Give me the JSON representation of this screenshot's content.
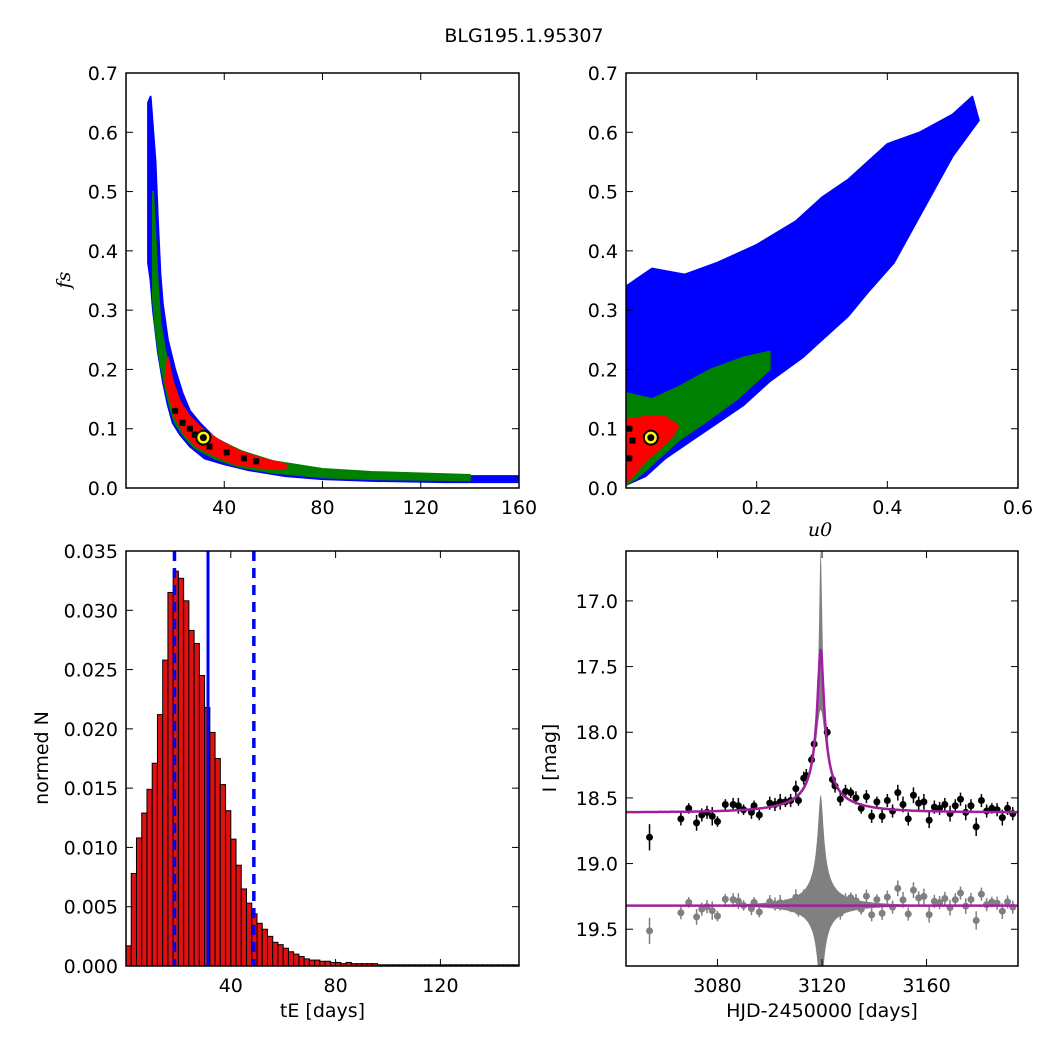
{
  "figure": {
    "title": "BLG195.1.95307"
  },
  "colors": {
    "sigma3": "#0000ff",
    "sigma2": "#008000",
    "sigma1": "#ff0000",
    "peak": "#000000",
    "best_fit_ring": "#ffff00",
    "hist_bar": "#dd1111",
    "model_line": "#a020a0",
    "residual_band": "#808080"
  },
  "chart_data": [
    {
      "id": "fs_vs_tE",
      "type": "heatmap",
      "xlabel": "",
      "ylabel": "f_s",
      "ylabel_display": "fs",
      "xlim": [
        0,
        160
      ],
      "ylim": [
        0.0,
        0.7
      ],
      "xticks": [
        40,
        80,
        120,
        160
      ],
      "yticks": [
        0.0,
        0.1,
        0.2,
        0.3,
        0.4,
        0.5,
        0.6,
        0.7
      ],
      "xtick_labels": [
        "40",
        "80",
        "120",
        "160"
      ],
      "ytick_labels": [
        "0.0",
        "0.1",
        "0.2",
        "0.3",
        "0.4",
        "0.5",
        "0.6",
        "0.7"
      ],
      "best_fit": {
        "x": 31.5,
        "y": 0.085
      },
      "regions": [
        {
          "level": "3sigma",
          "color": "#0000ff",
          "points": [
            [
              9,
              0.65
            ],
            [
              10,
              0.66
            ],
            [
              12,
              0.55
            ],
            [
              13,
              0.45
            ],
            [
              14,
              0.36
            ],
            [
              15,
              0.31
            ],
            [
              17,
              0.25
            ],
            [
              20,
              0.2
            ],
            [
              23,
              0.16
            ],
            [
              26,
              0.13
            ],
            [
              30,
              0.11
            ],
            [
              36,
              0.085
            ],
            [
              45,
              0.065
            ],
            [
              55,
              0.05
            ],
            [
              65,
              0.04
            ],
            [
              80,
              0.03
            ],
            [
              100,
              0.024
            ],
            [
              130,
              0.02
            ],
            [
              160,
              0.02
            ],
            [
              160,
              0.01
            ],
            [
              130,
              0.01
            ],
            [
              100,
              0.012
            ],
            [
              80,
              0.015
            ],
            [
              65,
              0.02
            ],
            [
              50,
              0.03
            ],
            [
              40,
              0.04
            ],
            [
              32,
              0.05
            ],
            [
              26,
              0.07
            ],
            [
              22,
              0.09
            ],
            [
              19,
              0.11
            ],
            [
              17,
              0.14
            ],
            [
              15,
              0.18
            ],
            [
              13,
              0.23
            ],
            [
              11,
              0.3
            ],
            [
              10,
              0.35
            ],
            [
              9,
              0.38
            ]
          ]
        },
        {
          "level": "2sigma",
          "color": "#008000",
          "points": [
            [
              11,
              0.5
            ],
            [
              12,
              0.42
            ],
            [
              13,
              0.34
            ],
            [
              14,
              0.28
            ],
            [
              16,
              0.23
            ],
            [
              19,
              0.18
            ],
            [
              22,
              0.145
            ],
            [
              26,
              0.12
            ],
            [
              31,
              0.1
            ],
            [
              38,
              0.08
            ],
            [
              47,
              0.062
            ],
            [
              60,
              0.045
            ],
            [
              80,
              0.032
            ],
            [
              100,
              0.027
            ],
            [
              140,
              0.022
            ],
            [
              140,
              0.013
            ],
            [
              100,
              0.015
            ],
            [
              80,
              0.018
            ],
            [
              60,
              0.026
            ],
            [
              46,
              0.036
            ],
            [
              36,
              0.05
            ],
            [
              28,
              0.068
            ],
            [
              24,
              0.085
            ],
            [
              20,
              0.11
            ],
            [
              18,
              0.135
            ],
            [
              16,
              0.17
            ],
            [
              14,
              0.21
            ],
            [
              12,
              0.27
            ],
            [
              11,
              0.32
            ]
          ]
        },
        {
          "level": "1sigma",
          "color": "#ff0000",
          "points": [
            [
              17,
              0.22
            ],
            [
              19,
              0.18
            ],
            [
              22,
              0.145
            ],
            [
              26,
              0.12
            ],
            [
              31,
              0.1
            ],
            [
              38,
              0.08
            ],
            [
              46,
              0.062
            ],
            [
              55,
              0.05
            ],
            [
              65,
              0.04
            ],
            [
              65,
              0.033
            ],
            [
              55,
              0.034
            ],
            [
              45,
              0.04
            ],
            [
              36,
              0.055
            ],
            [
              29,
              0.07
            ],
            [
              24,
              0.09
            ],
            [
              20,
              0.12
            ],
            [
              18,
              0.15
            ],
            [
              16,
              0.18
            ]
          ]
        }
      ],
      "peak_cells": [
        [
          20,
          0.13
        ],
        [
          23,
          0.11
        ],
        [
          26,
          0.1
        ],
        [
          28,
          0.09
        ],
        [
          34,
          0.07
        ],
        [
          41,
          0.06
        ],
        [
          48,
          0.05
        ],
        [
          53,
          0.045
        ]
      ]
    },
    {
      "id": "fs_vs_u0",
      "type": "heatmap",
      "xlabel": "u_0",
      "xlabel_display": "u0",
      "ylabel": "",
      "xlim": [
        0.0,
        0.6
      ],
      "ylim": [
        0.0,
        0.7
      ],
      "xticks": [
        0.2,
        0.4,
        0.6
      ],
      "yticks": [
        0.0,
        0.1,
        0.2,
        0.3,
        0.4,
        0.5,
        0.6,
        0.7
      ],
      "xtick_labels": [
        "0.2",
        "0.4",
        "0.6"
      ],
      "ytick_labels": [
        "0.0",
        "0.1",
        "0.2",
        "0.3",
        "0.4",
        "0.5",
        "0.6",
        "0.7"
      ],
      "best_fit": {
        "x": 0.038,
        "y": 0.085
      },
      "regions": [
        {
          "level": "3sigma",
          "color": "#0000ff",
          "points": [
            [
              0,
              0.34
            ],
            [
              0.04,
              0.37
            ],
            [
              0.09,
              0.36
            ],
            [
              0.14,
              0.38
            ],
            [
              0.2,
              0.41
            ],
            [
              0.26,
              0.45
            ],
            [
              0.3,
              0.49
            ],
            [
              0.34,
              0.52
            ],
            [
              0.4,
              0.58
            ],
            [
              0.45,
              0.6
            ],
            [
              0.5,
              0.63
            ],
            [
              0.53,
              0.66
            ],
            [
              0.54,
              0.62
            ],
            [
              0.5,
              0.56
            ],
            [
              0.44,
              0.44
            ],
            [
              0.41,
              0.38
            ],
            [
              0.37,
              0.33
            ],
            [
              0.34,
              0.29
            ],
            [
              0.3,
              0.25
            ],
            [
              0.27,
              0.22
            ],
            [
              0.22,
              0.18
            ],
            [
              0.18,
              0.14
            ],
            [
              0.14,
              0.11
            ],
            [
              0.1,
              0.08
            ],
            [
              0.06,
              0.05
            ],
            [
              0.03,
              0.02
            ],
            [
              0,
              0.005
            ]
          ]
        },
        {
          "level": "2sigma",
          "color": "#008000",
          "points": [
            [
              0,
              0.16
            ],
            [
              0.04,
              0.15
            ],
            [
              0.08,
              0.17
            ],
            [
              0.13,
              0.2
            ],
            [
              0.18,
              0.22
            ],
            [
              0.22,
              0.23
            ],
            [
              0.22,
              0.2
            ],
            [
              0.17,
              0.15
            ],
            [
              0.12,
              0.11
            ],
            [
              0.08,
              0.08
            ],
            [
              0.05,
              0.05
            ],
            [
              0.02,
              0.02
            ],
            [
              0,
              0.005
            ]
          ]
        },
        {
          "level": "1sigma",
          "color": "#ff0000",
          "points": [
            [
              0,
              0.115
            ],
            [
              0.03,
              0.12
            ],
            [
              0.06,
              0.12
            ],
            [
              0.08,
              0.105
            ],
            [
              0.07,
              0.085
            ],
            [
              0.05,
              0.065
            ],
            [
              0.03,
              0.045
            ],
            [
              0.01,
              0.02
            ],
            [
              0,
              0.01
            ]
          ]
        }
      ],
      "peak_cells": [
        [
          0.005,
          0.05
        ],
        [
          0.01,
          0.08
        ],
        [
          0.005,
          0.1
        ]
      ]
    },
    {
      "id": "tE_histogram",
      "type": "bar",
      "xlabel": "t_E [days]",
      "xlabel_display": "tE  [days]",
      "ylabel": "normed N",
      "xlim": [
        0,
        150
      ],
      "ylim": [
        0.0,
        0.035
      ],
      "xticks": [
        40,
        80,
        120
      ],
      "yticks": [
        0.0,
        0.005,
        0.01,
        0.015,
        0.02,
        0.025,
        0.03,
        0.035
      ],
      "xtick_labels": [
        "40",
        "80",
        "120"
      ],
      "ytick_labels": [
        "0.000",
        "0.005",
        "0.010",
        "0.015",
        "0.020",
        "0.025",
        "0.030",
        "0.035"
      ],
      "bin_width": 2,
      "bin_start": 0,
      "values": [
        0.0017,
        0.0078,
        0.0108,
        0.0129,
        0.0149,
        0.0171,
        0.0212,
        0.0258,
        0.0315,
        0.0333,
        0.0327,
        0.0308,
        0.0283,
        0.0272,
        0.0245,
        0.0218,
        0.0197,
        0.0175,
        0.0153,
        0.0131,
        0.0107,
        0.0085,
        0.0065,
        0.0053,
        0.0044,
        0.0036,
        0.0031,
        0.0025,
        0.002,
        0.0018,
        0.0015,
        0.0012,
        0.001,
        0.0008,
        0.0006,
        0.0005,
        0.0005,
        0.0004,
        0.0004,
        0.0003,
        0.0003,
        0.0002,
        0.0003,
        0.0002,
        0.0002,
        0.0002,
        0.0002,
        0.0002,
        0.0001,
        0.0001,
        0.0001,
        0.0001,
        0.0001,
        0.0001,
        0.0001,
        0.0001,
        0.0001,
        0.0001,
        0.0001,
        0.0001,
        0.0001,
        0.0001,
        0.0001,
        0.0001,
        0.0001,
        0.0001,
        0.0001,
        0.0001,
        0.0001,
        0.0001,
        0.0001,
        0.0001,
        0.0001,
        0.0001,
        0.0001
      ],
      "median": 31.3,
      "interval": [
        18.5,
        48.8
      ]
    },
    {
      "id": "lightcurve",
      "type": "scatter",
      "xlabel": "HJD-2450000 [days]",
      "ylabel": "I [mag]",
      "xlim": [
        3045,
        3195
      ],
      "ylim": [
        19.78,
        16.62
      ],
      "xticks": [
        3080,
        3120,
        3160
      ],
      "yticks": [
        17.0,
        17.5,
        18.0,
        18.5,
        19.0,
        19.5
      ],
      "xtick_labels": [
        "3080",
        "3120",
        "3160"
      ],
      "ytick_labels": [
        "17.0",
        "17.5",
        "18.0",
        "18.5",
        "19.0",
        "19.5"
      ],
      "model": {
        "t0": 3119.5,
        "tE": 31.3,
        "u0": 0.038,
        "baseline": 18.61,
        "peak_mag": 17.37,
        "inner_peak_mag": 17.83,
        "residual_baseline": 19.32
      },
      "observations": [
        [
          3054,
          18.8,
          0.1
        ],
        [
          3066,
          18.66,
          0.05
        ],
        [
          3069,
          18.58,
          0.04
        ],
        [
          3072,
          18.69,
          0.06
        ],
        [
          3074,
          18.63,
          0.05
        ],
        [
          3076,
          18.61,
          0.05
        ],
        [
          3078,
          18.64,
          0.07
        ],
        [
          3080,
          18.68,
          0.04
        ],
        [
          3083,
          18.55,
          0.04
        ],
        [
          3086,
          18.55,
          0.05
        ],
        [
          3088,
          18.56,
          0.06
        ],
        [
          3090,
          18.59,
          0.04
        ],
        [
          3093,
          18.61,
          0.05
        ],
        [
          3094,
          18.56,
          0.04
        ],
        [
          3096,
          18.63,
          0.04
        ],
        [
          3100,
          18.54,
          0.05
        ],
        [
          3102,
          18.55,
          0.05
        ],
        [
          3104,
          18.53,
          0.06
        ],
        [
          3106,
          18.53,
          0.04
        ],
        [
          3108,
          18.52,
          0.05
        ],
        [
          3110,
          18.43,
          0.06
        ],
        [
          3111,
          18.52,
          0.04
        ],
        [
          3113,
          18.35,
          0.05
        ],
        [
          3114,
          18.33,
          0.05
        ],
        [
          3116,
          18.21,
          0.04
        ],
        [
          3117,
          18.09,
          0.04
        ],
        [
          3122,
          18.0,
          0.04
        ],
        [
          3124,
          18.36,
          0.05
        ],
        [
          3125,
          18.41,
          0.05
        ],
        [
          3127,
          18.51,
          0.05
        ],
        [
          3129,
          18.45,
          0.05
        ],
        [
          3131,
          18.46,
          0.04
        ],
        [
          3133,
          18.5,
          0.05
        ],
        [
          3135,
          18.58,
          0.04
        ],
        [
          3137,
          18.49,
          0.05
        ],
        [
          3139,
          18.64,
          0.05
        ],
        [
          3141,
          18.53,
          0.04
        ],
        [
          3143,
          18.64,
          0.05
        ],
        [
          3145,
          18.52,
          0.05
        ],
        [
          3147,
          18.6,
          0.05
        ],
        [
          3149,
          18.46,
          0.06
        ],
        [
          3151,
          18.55,
          0.06
        ],
        [
          3153,
          18.66,
          0.05
        ],
        [
          3155,
          18.48,
          0.06
        ],
        [
          3157,
          18.54,
          0.05
        ],
        [
          3159,
          18.53,
          0.06
        ],
        [
          3161,
          18.67,
          0.06
        ],
        [
          3163,
          18.57,
          0.05
        ],
        [
          3165,
          18.58,
          0.05
        ],
        [
          3167,
          18.55,
          0.05
        ],
        [
          3169,
          18.62,
          0.06
        ],
        [
          3171,
          18.56,
          0.05
        ],
        [
          3173,
          18.51,
          0.05
        ],
        [
          3175,
          18.61,
          0.06
        ],
        [
          3177,
          18.56,
          0.05
        ],
        [
          3179,
          18.72,
          0.07
        ],
        [
          3181,
          18.52,
          0.05
        ],
        [
          3183,
          18.6,
          0.05
        ],
        [
          3185,
          18.58,
          0.04
        ],
        [
          3187,
          18.59,
          0.05
        ],
        [
          3189,
          18.65,
          0.06
        ],
        [
          3191,
          18.58,
          0.05
        ],
        [
          3193,
          18.62,
          0.05
        ]
      ],
      "residual_offset": 0.71
    }
  ]
}
